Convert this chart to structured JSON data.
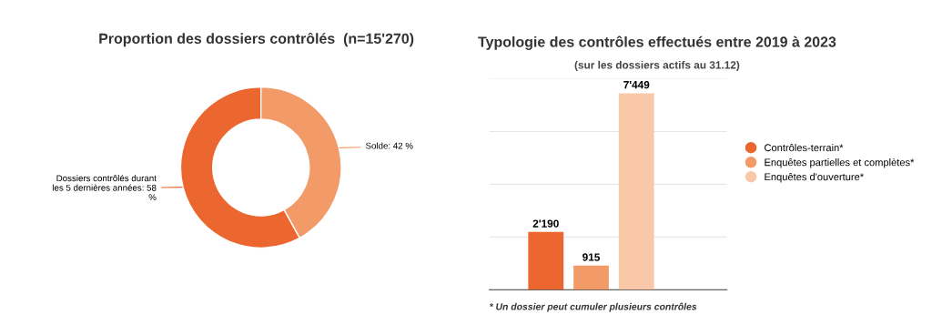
{
  "chart_data": [
    {
      "type": "donut",
      "title": "Proportion des dossiers contrôlés  (n=15'270)",
      "categories": [
        "Dossiers contrôlés durant\nles 5 dernières années: 58\n%",
        "Solde: 42 %"
      ],
      "values": [
        58,
        42
      ],
      "colors": [
        "#ec6730",
        "#f39a69"
      ],
      "legend": false
    },
    {
      "type": "bar",
      "title": "Typologie des contrôles effectués entre 2019 à 2023",
      "subtitle": "(sur les dossiers actifs au 31.12)",
      "categories": [
        null
      ],
      "series": [
        {
          "name": "Contrôles-terrain*",
          "color": "#ec6730",
          "values": [
            2190
          ],
          "value_labels": [
            "2'190"
          ]
        },
        {
          "name": "Enquêtes partielles et complètes*",
          "color": "#f39a69",
          "values": [
            915
          ],
          "value_labels": [
            "915"
          ]
        },
        {
          "name": "Enquêtes d'ouverture*",
          "color": "#f9c8a9",
          "values": [
            7449
          ],
          "value_labels": [
            "7'449"
          ]
        }
      ],
      "ylim": [
        0,
        8000
      ],
      "yticks": [
        {
          "value": 0,
          "label": null
        },
        {
          "value": 2000,
          "label": null
        },
        {
          "value": 4000,
          "label": null
        },
        {
          "value": 6000,
          "label": null
        },
        {
          "value": 8000,
          "label": null
        }
      ],
      "grid": "y",
      "legend": "right",
      "annotations": [
        "* Un dossier peut cumuler plusieurs contrôles"
      ]
    }
  ]
}
